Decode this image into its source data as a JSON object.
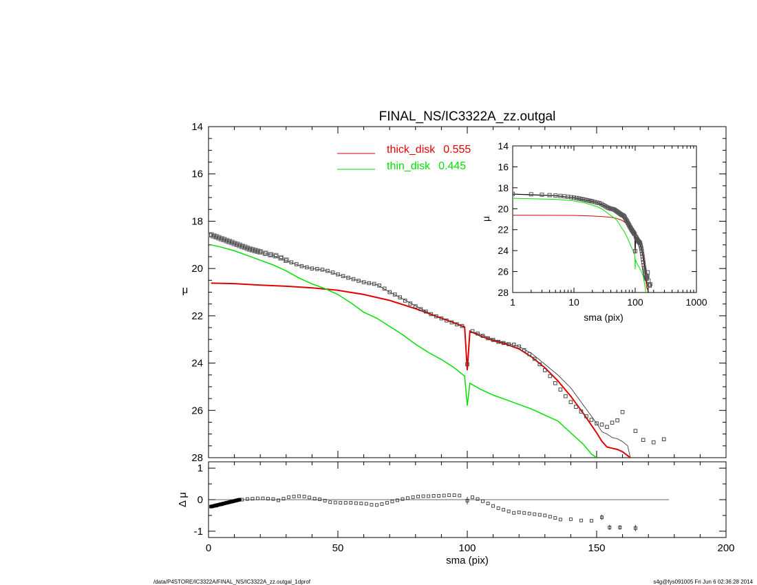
{
  "chart_data": {
    "type": "scatter",
    "title": "FINAL_NS/IC3322A_zz.outgal",
    "xlabel": "sma (pix)",
    "ylabel": "μ",
    "residual_ylabel": "Δ μ",
    "xlim": [
      0,
      200
    ],
    "ylim": [
      14,
      28
    ],
    "y_inverted": true,
    "residual_ylim": [
      -1.2,
      1.2
    ],
    "x_ticks": [
      "0",
      "50",
      "100",
      "150",
      "200"
    ],
    "y_ticks": [
      "14",
      "16",
      "18",
      "20",
      "22",
      "24",
      "26",
      "28"
    ],
    "residual_y_ticks": [
      "1",
      "0",
      "-1"
    ],
    "legend": [
      {
        "name": "thick_disk",
        "value": "0.555",
        "color": "#e00000"
      },
      {
        "name": "thin_disk",
        "value": "0.445",
        "color": "#00e000"
      }
    ],
    "colors": {
      "data": "#444444",
      "model": "#222222",
      "thick": "#e00000",
      "thin": "#00e000"
    },
    "observed": [
      [
        1,
        18.58
      ],
      [
        2,
        18.62
      ],
      [
        3,
        18.66
      ],
      [
        4,
        18.7
      ],
      [
        5,
        18.74
      ],
      [
        6,
        18.78
      ],
      [
        7,
        18.82
      ],
      [
        8,
        18.86
      ],
      [
        9,
        18.9
      ],
      [
        10,
        18.94
      ],
      [
        11,
        18.98
      ],
      [
        12,
        19.02
      ],
      [
        13,
        19.06
      ],
      [
        14,
        19.1
      ],
      [
        15,
        19.14
      ],
      [
        16,
        19.18
      ],
      [
        17,
        19.21
      ],
      [
        18,
        19.24
      ],
      [
        19,
        19.27
      ],
      [
        20,
        19.3
      ],
      [
        22,
        19.36
      ],
      [
        24,
        19.42
      ],
      [
        26,
        19.46
      ],
      [
        28,
        19.55
      ],
      [
        30,
        19.65
      ],
      [
        32,
        19.74
      ],
      [
        34,
        19.82
      ],
      [
        36,
        19.9
      ],
      [
        38,
        19.95
      ],
      [
        40,
        20.0
      ],
      [
        42,
        20.02
      ],
      [
        44,
        20.05
      ],
      [
        46,
        20.1
      ],
      [
        48,
        20.17
      ],
      [
        50,
        20.25
      ],
      [
        52,
        20.32
      ],
      [
        54,
        20.39
      ],
      [
        56,
        20.45
      ],
      [
        58,
        20.52
      ],
      [
        60,
        20.58
      ],
      [
        62,
        20.62
      ],
      [
        64,
        20.65
      ],
      [
        66,
        20.72
      ],
      [
        68,
        20.85
      ],
      [
        70,
        21.0
      ],
      [
        72,
        21.1
      ],
      [
        74,
        21.22
      ],
      [
        76,
        21.36
      ],
      [
        78,
        21.48
      ],
      [
        80,
        21.6
      ],
      [
        82,
        21.72
      ],
      [
        84,
        21.82
      ],
      [
        86,
        21.93
      ],
      [
        88,
        22.02
      ],
      [
        90,
        22.11
      ],
      [
        92,
        22.2
      ],
      [
        94,
        22.28
      ],
      [
        96,
        22.36
      ],
      [
        98,
        22.43
      ],
      [
        100,
        24.05
      ],
      [
        102,
        22.65
      ],
      [
        104,
        22.75
      ],
      [
        106,
        22.85
      ],
      [
        108,
        22.95
      ],
      [
        110,
        23.02
      ],
      [
        112,
        23.1
      ],
      [
        114,
        23.15
      ],
      [
        116,
        23.2
      ],
      [
        118,
        23.22
      ],
      [
        120,
        23.3
      ],
      [
        122,
        23.45
      ],
      [
        124,
        23.62
      ],
      [
        126,
        23.82
      ],
      [
        128,
        24.05
      ],
      [
        130,
        24.3
      ],
      [
        132,
        24.55
      ],
      [
        134,
        24.85
      ],
      [
        136,
        25.12
      ],
      [
        138,
        25.4
      ],
      [
        140,
        25.65
      ],
      [
        142,
        25.85
      ],
      [
        144,
        26.05
      ],
      [
        146,
        26.25
      ],
      [
        148,
        26.4
      ],
      [
        150,
        26.55
      ],
      [
        152,
        26.6
      ],
      [
        154,
        26.7
      ],
      [
        156,
        26.52
      ],
      [
        158,
        26.42
      ],
      [
        160,
        26.07
      ],
      [
        165,
        26.87
      ],
      [
        168,
        27.25
      ],
      [
        172,
        27.35
      ],
      [
        176,
        27.22
      ]
    ],
    "total_model": [
      [
        1,
        18.6
      ],
      [
        5,
        18.75
      ],
      [
        10,
        18.95
      ],
      [
        15,
        19.15
      ],
      [
        20,
        19.3
      ],
      [
        25,
        19.45
      ],
      [
        30,
        19.66
      ],
      [
        35,
        19.87
      ],
      [
        40,
        20.0
      ],
      [
        45,
        20.08
      ],
      [
        50,
        20.26
      ],
      [
        55,
        20.42
      ],
      [
        60,
        20.58
      ],
      [
        65,
        20.68
      ],
      [
        70,
        21.0
      ],
      [
        75,
        21.28
      ],
      [
        80,
        21.58
      ],
      [
        85,
        21.87
      ],
      [
        90,
        22.11
      ],
      [
        95,
        22.32
      ],
      [
        99,
        22.45
      ],
      [
        100,
        24.2
      ],
      [
        101,
        22.65
      ],
      [
        105,
        22.78
      ],
      [
        110,
        23.0
      ],
      [
        115,
        23.15
      ],
      [
        120,
        23.3
      ],
      [
        125,
        23.6
      ],
      [
        130,
        24.05
      ],
      [
        135,
        24.5
      ],
      [
        140,
        25.05
      ],
      [
        145,
        25.8
      ],
      [
        150,
        26.55
      ],
      [
        152,
        26.9
      ],
      [
        154,
        27.0
      ],
      [
        156,
        27.15
      ],
      [
        158,
        27.2
      ],
      [
        160,
        27.32
      ],
      [
        162,
        27.5
      ],
      [
        163,
        28.0
      ]
    ],
    "thick_disk": [
      [
        1,
        20.62
      ],
      [
        10,
        20.64
      ],
      [
        20,
        20.7
      ],
      [
        30,
        20.75
      ],
      [
        40,
        20.82
      ],
      [
        50,
        20.92
      ],
      [
        60,
        21.1
      ],
      [
        70,
        21.35
      ],
      [
        80,
        21.7
      ],
      [
        90,
        22.1
      ],
      [
        95,
        22.3
      ],
      [
        99,
        22.48
      ],
      [
        100,
        24.3
      ],
      [
        101,
        22.65
      ],
      [
        105,
        22.85
      ],
      [
        110,
        23.05
      ],
      [
        115,
        23.2
      ],
      [
        120,
        23.4
      ],
      [
        125,
        23.75
      ],
      [
        130,
        24.2
      ],
      [
        135,
        24.75
      ],
      [
        140,
        25.4
      ],
      [
        145,
        26.15
      ],
      [
        150,
        26.95
      ],
      [
        152,
        27.3
      ],
      [
        154,
        27.55
      ],
      [
        156,
        27.6
      ],
      [
        158,
        27.65
      ],
      [
        160,
        27.75
      ],
      [
        163,
        28.0
      ]
    ],
    "thin_disk": [
      [
        1,
        19.0
      ],
      [
        5,
        19.1
      ],
      [
        10,
        19.25
      ],
      [
        15,
        19.45
      ],
      [
        20,
        19.65
      ],
      [
        25,
        19.85
      ],
      [
        30,
        20.1
      ],
      [
        35,
        20.4
      ],
      [
        40,
        20.65
      ],
      [
        45,
        20.85
      ],
      [
        50,
        21.1
      ],
      [
        55,
        21.45
      ],
      [
        60,
        21.85
      ],
      [
        65,
        22.1
      ],
      [
        70,
        22.45
      ],
      [
        75,
        22.8
      ],
      [
        80,
        23.2
      ],
      [
        85,
        23.55
      ],
      [
        90,
        23.85
      ],
      [
        95,
        24.2
      ],
      [
        99,
        24.55
      ],
      [
        100,
        25.8
      ],
      [
        101,
        24.85
      ],
      [
        105,
        25.1
      ],
      [
        110,
        25.35
      ],
      [
        115,
        25.55
      ],
      [
        120,
        25.75
      ],
      [
        125,
        25.95
      ],
      [
        130,
        26.2
      ],
      [
        135,
        26.45
      ],
      [
        140,
        26.95
      ],
      [
        145,
        27.45
      ],
      [
        148,
        27.85
      ],
      [
        150,
        28.0
      ]
    ],
    "residual": [
      [
        1,
        -0.22
      ],
      [
        3,
        -0.19
      ],
      [
        5,
        -0.15
      ],
      [
        7,
        -0.1
      ],
      [
        9,
        -0.06
      ],
      [
        11,
        -0.02
      ],
      [
        13,
        0.0
      ],
      [
        15,
        0.02
      ],
      [
        17,
        0.03
      ],
      [
        19,
        0.04
      ],
      [
        21,
        0.04
      ],
      [
        23,
        0.03
      ],
      [
        25,
        0.02
      ],
      [
        27,
        -0.02
      ],
      [
        29,
        0.03
      ],
      [
        31,
        0.08
      ],
      [
        33,
        0.1
      ],
      [
        35,
        0.11
      ],
      [
        37,
        0.1
      ],
      [
        39,
        0.07
      ],
      [
        41,
        0.03
      ],
      [
        43,
        0.01
      ],
      [
        45,
        -0.03
      ],
      [
        47,
        -0.08
      ],
      [
        49,
        -0.09
      ],
      [
        51,
        -0.1
      ],
      [
        53,
        -0.1
      ],
      [
        55,
        -0.1
      ],
      [
        57,
        -0.11
      ],
      [
        59,
        -0.12
      ],
      [
        61,
        -0.13
      ],
      [
        63,
        -0.16
      ],
      [
        65,
        -0.17
      ],
      [
        67,
        -0.14
      ],
      [
        69,
        -0.1
      ],
      [
        71,
        -0.06
      ],
      [
        73,
        -0.02
      ],
      [
        75,
        0.02
      ],
      [
        77,
        0.05
      ],
      [
        79,
        0.08
      ],
      [
        81,
        0.1
      ],
      [
        83,
        0.11
      ],
      [
        85,
        0.11
      ],
      [
        87,
        0.12
      ],
      [
        89,
        0.12
      ],
      [
        91,
        0.13
      ],
      [
        93,
        0.14
      ],
      [
        95,
        0.14
      ],
      [
        97,
        0.13
      ],
      [
        100,
        -0.03
      ],
      [
        102,
        0.08
      ],
      [
        104,
        0.02
      ],
      [
        106,
        -0.05
      ],
      [
        108,
        -0.12
      ],
      [
        110,
        -0.2
      ],
      [
        112,
        -0.27
      ],
      [
        114,
        -0.32
      ],
      [
        116,
        -0.37
      ],
      [
        118,
        -0.42
      ],
      [
        120,
        -0.4
      ],
      [
        122,
        -0.42
      ],
      [
        124,
        -0.44
      ],
      [
        126,
        -0.46
      ],
      [
        128,
        -0.48
      ],
      [
        130,
        -0.5
      ],
      [
        132,
        -0.54
      ],
      [
        134,
        -0.58
      ],
      [
        136,
        -0.63
      ],
      [
        140,
        -0.62
      ],
      [
        144,
        -0.66
      ],
      [
        148,
        -0.67
      ],
      [
        152,
        -0.56
      ],
      [
        155,
        -0.88
      ],
      [
        159,
        -0.88
      ],
      [
        165,
        -0.9
      ]
    ],
    "inset": {
      "xlabel": "sma (pix)",
      "ylabel": "μ",
      "xscale": "log",
      "xlim": [
        1,
        1000
      ],
      "ylim": [
        14,
        28
      ],
      "x_ticks": [
        "1",
        "10",
        "100",
        "1000"
      ],
      "y_ticks": [
        "14",
        "16",
        "18",
        "20",
        "22",
        "24",
        "26",
        "28"
      ]
    }
  },
  "footer": {
    "path": "/data/P4STORE/IC3322A/FINAL_NS/IC3322A_zz.outgal_1dprof",
    "stamp": "s4g@fys091005  Fri Jun  6 02:36:28 2014"
  }
}
